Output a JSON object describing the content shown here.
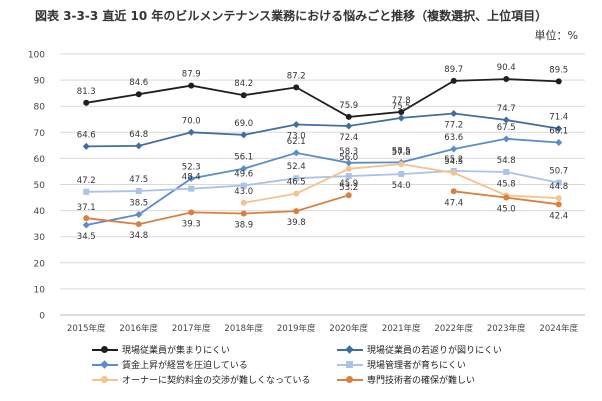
{
  "header": {
    "title": "図表 3-3-3 直近 10 年のビルメンテナンス業務における悩みごと推移（複数選択、上位項目）",
    "unit": "単位：%"
  },
  "chart_data": {
    "type": "line",
    "title": "図表 3-3-3 直近 10 年のビルメンテナンス業務における悩みごと推移（複数選択、上位項目）",
    "ylabel": "単位：%",
    "ylim": [
      0,
      100
    ],
    "yticks": [
      0,
      10,
      20,
      30,
      40,
      50,
      60,
      70,
      80,
      90,
      100
    ],
    "categories": [
      "2015年度",
      "2016年度",
      "2017年度",
      "2018年度",
      "2019年度",
      "2020年度",
      "2021年度",
      "2022年度",
      "2023年度",
      "2024年度"
    ],
    "series": [
      {
        "name": "現場従業員が集まりにくい",
        "color": "#1f1f1f",
        "marker": "circle",
        "values": [
          81.3,
          84.6,
          87.9,
          84.2,
          87.2,
          75.9,
          77.8,
          89.7,
          90.4,
          89.5
        ]
      },
      {
        "name": "現場従業員の若返りが図りにくい",
        "color": "#3f6ea0",
        "marker": "diamond",
        "values": [
          64.6,
          64.8,
          70.0,
          69.0,
          73.0,
          72.4,
          75.5,
          77.2,
          74.7,
          71.4
        ]
      },
      {
        "name": "賃金上昇が経営を圧迫している",
        "color": "#5b8dc9",
        "marker": "diamond",
        "values": [
          34.5,
          38.5,
          52.3,
          56.1,
          62.1,
          58.3,
          58.5,
          63.6,
          67.5,
          66.1
        ]
      },
      {
        "name": "現場管理者が育ちにくい",
        "color": "#a9c4e6",
        "marker": "square",
        "values": [
          47.2,
          47.5,
          48.4,
          49.6,
          52.4,
          53.2,
          54.0,
          55.2,
          54.8,
          50.7
        ]
      },
      {
        "name": "オーナーに契約料金の交渉が難しくなっている",
        "color": "#f6c28e",
        "marker": "circle",
        "values": [
          null,
          null,
          null,
          43.0,
          46.5,
          56.0,
          57.8,
          54.5,
          45.8,
          44.8
        ]
      },
      {
        "name": "専門技術者の確保が難しい",
        "color": "#d98040",
        "marker": "circle",
        "values": [
          37.1,
          34.8,
          39.3,
          38.9,
          39.8,
          45.9,
          null,
          47.4,
          45.0,
          42.4
        ]
      }
    ],
    "legend_position": "bottom",
    "grid": true
  }
}
